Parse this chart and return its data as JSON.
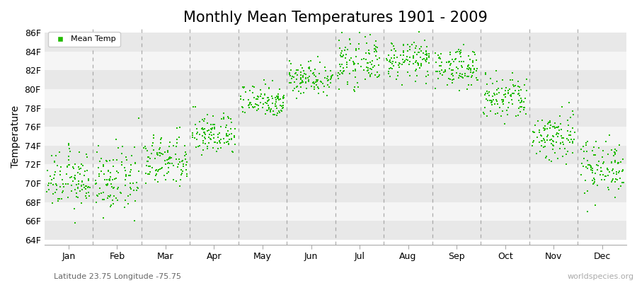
{
  "title": "Monthly Mean Temperatures 1901 - 2009",
  "ylabel": "Temperature",
  "ytick_labels": [
    "64F",
    "66F",
    "68F",
    "70F",
    "72F",
    "74F",
    "76F",
    "78F",
    "80F",
    "82F",
    "84F",
    "86F"
  ],
  "ytick_values": [
    64,
    66,
    68,
    70,
    72,
    74,
    76,
    78,
    80,
    82,
    84,
    86
  ],
  "ylim": [
    63.5,
    86.5
  ],
  "months": [
    "Jan",
    "Feb",
    "Mar",
    "Apr",
    "May",
    "Jun",
    "Jul",
    "Aug",
    "Sep",
    "Oct",
    "Nov",
    "Dec"
  ],
  "month_means": [
    70.3,
    70.2,
    72.3,
    75.2,
    78.8,
    81.2,
    82.8,
    83.1,
    82.3,
    79.0,
    75.0,
    71.8
  ],
  "month_stds": [
    1.5,
    1.7,
    1.4,
    1.1,
    0.9,
    0.9,
    1.2,
    1.0,
    1.0,
    1.3,
    1.4,
    1.5
  ],
  "n_years": 109,
  "dot_color": "#22bb00",
  "dot_size": 3,
  "figure_bg": "#ffffff",
  "plot_bg": "#ffffff",
  "stripe_light": "#f5f5f5",
  "stripe_dark": "#e8e8e8",
  "grid_color": "#999999",
  "legend_label": "Mean Temp",
  "subtitle": "Latitude 23.75 Longitude -75.75",
  "watermark": "worldspecies.org",
  "title_fontsize": 15,
  "axis_label_fontsize": 10,
  "tick_fontsize": 9,
  "subtitle_fontsize": 8,
  "watermark_fontsize": 8
}
